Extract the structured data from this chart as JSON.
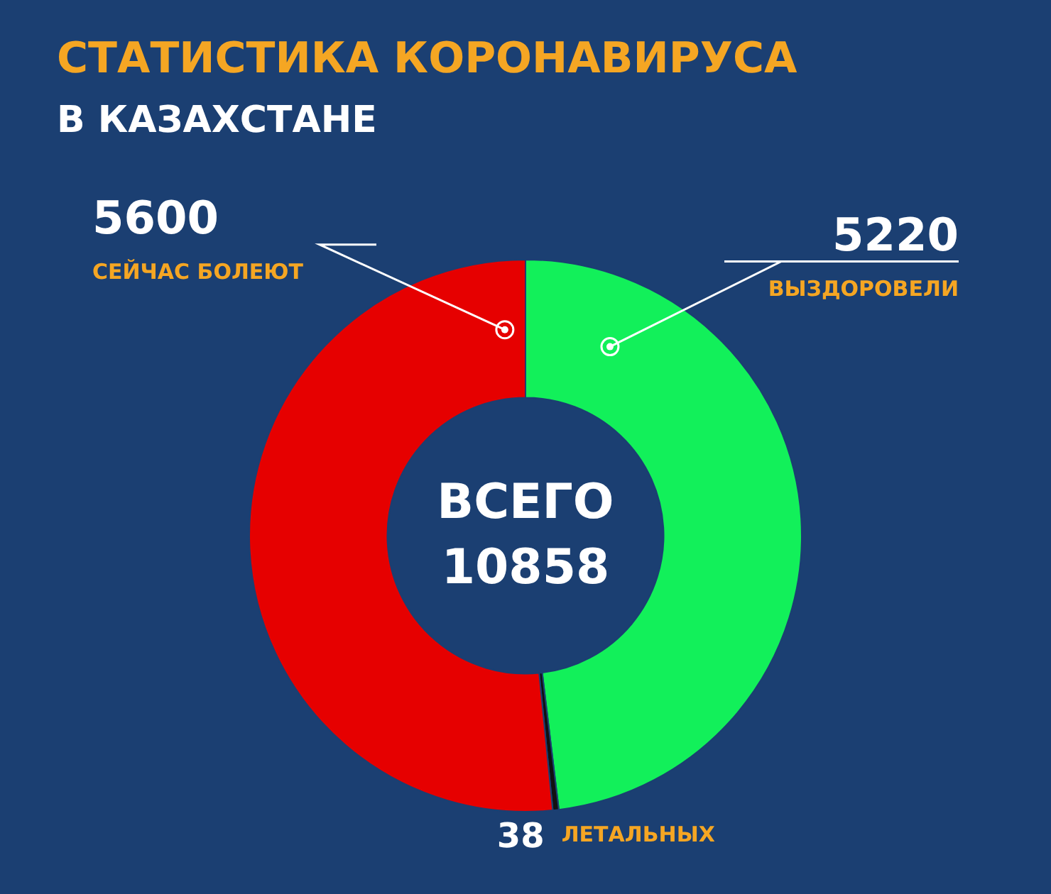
{
  "chart_data": {
    "type": "donut",
    "title": "СТАТИСТИКА КОРОНАВИРУСА",
    "subtitle": "В КАЗАХСТАНЕ",
    "categories": [
      "ВЫЗДОРОВЕЛИ",
      "ЛЕТАЛЬНЫХ",
      "СЕЙЧАС БОЛЕЮТ"
    ],
    "values": [
      5220,
      38,
      5600
    ],
    "colors": [
      "#12f05a",
      "#111111",
      "#e60000"
    ],
    "data_labels": true,
    "legend": false,
    "annotations": [
      "ВСЕГО 10858"
    ]
  }
}
